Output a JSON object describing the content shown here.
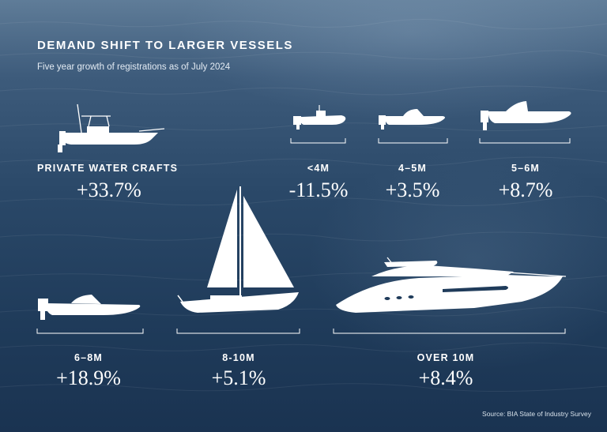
{
  "header": {
    "title": "DEMAND SHIFT TO LARGER VESSELS",
    "subtitle": "Five year growth of registrations as of July 2024"
  },
  "source": "Source: BIA State of Industry Survey",
  "colors": {
    "text": "#ffffff",
    "sea_dark": "#1a3351",
    "sea_light": "#5f7c98",
    "icon": "#ffffff"
  },
  "chart_data": {
    "type": "table",
    "title": "DEMAND SHIFT TO LARGER VESSELS",
    "subtitle": "Five year growth of registrations as of July 2024",
    "unit": "%",
    "categories": [
      "PRIVATE WATER CRAFTS",
      "<4M",
      "4–5M",
      "5–6M",
      "6–8M",
      "8-10M",
      "OVER 10M"
    ],
    "values": [
      33.7,
      -11.5,
      3.5,
      8.7,
      18.9,
      5.1,
      8.4
    ],
    "labels": [
      "+33.7%",
      "-11.5%",
      "+3.5%",
      "+8.7%",
      "+18.9%",
      "+5.1%",
      "+8.4%"
    ],
    "icons": [
      "center-console-boat-icon",
      "dinghy-icon",
      "speedboat-icon",
      "bowrider-icon",
      "powerboat-icon",
      "sailboat-icon",
      "motor-yacht-icon"
    ]
  }
}
